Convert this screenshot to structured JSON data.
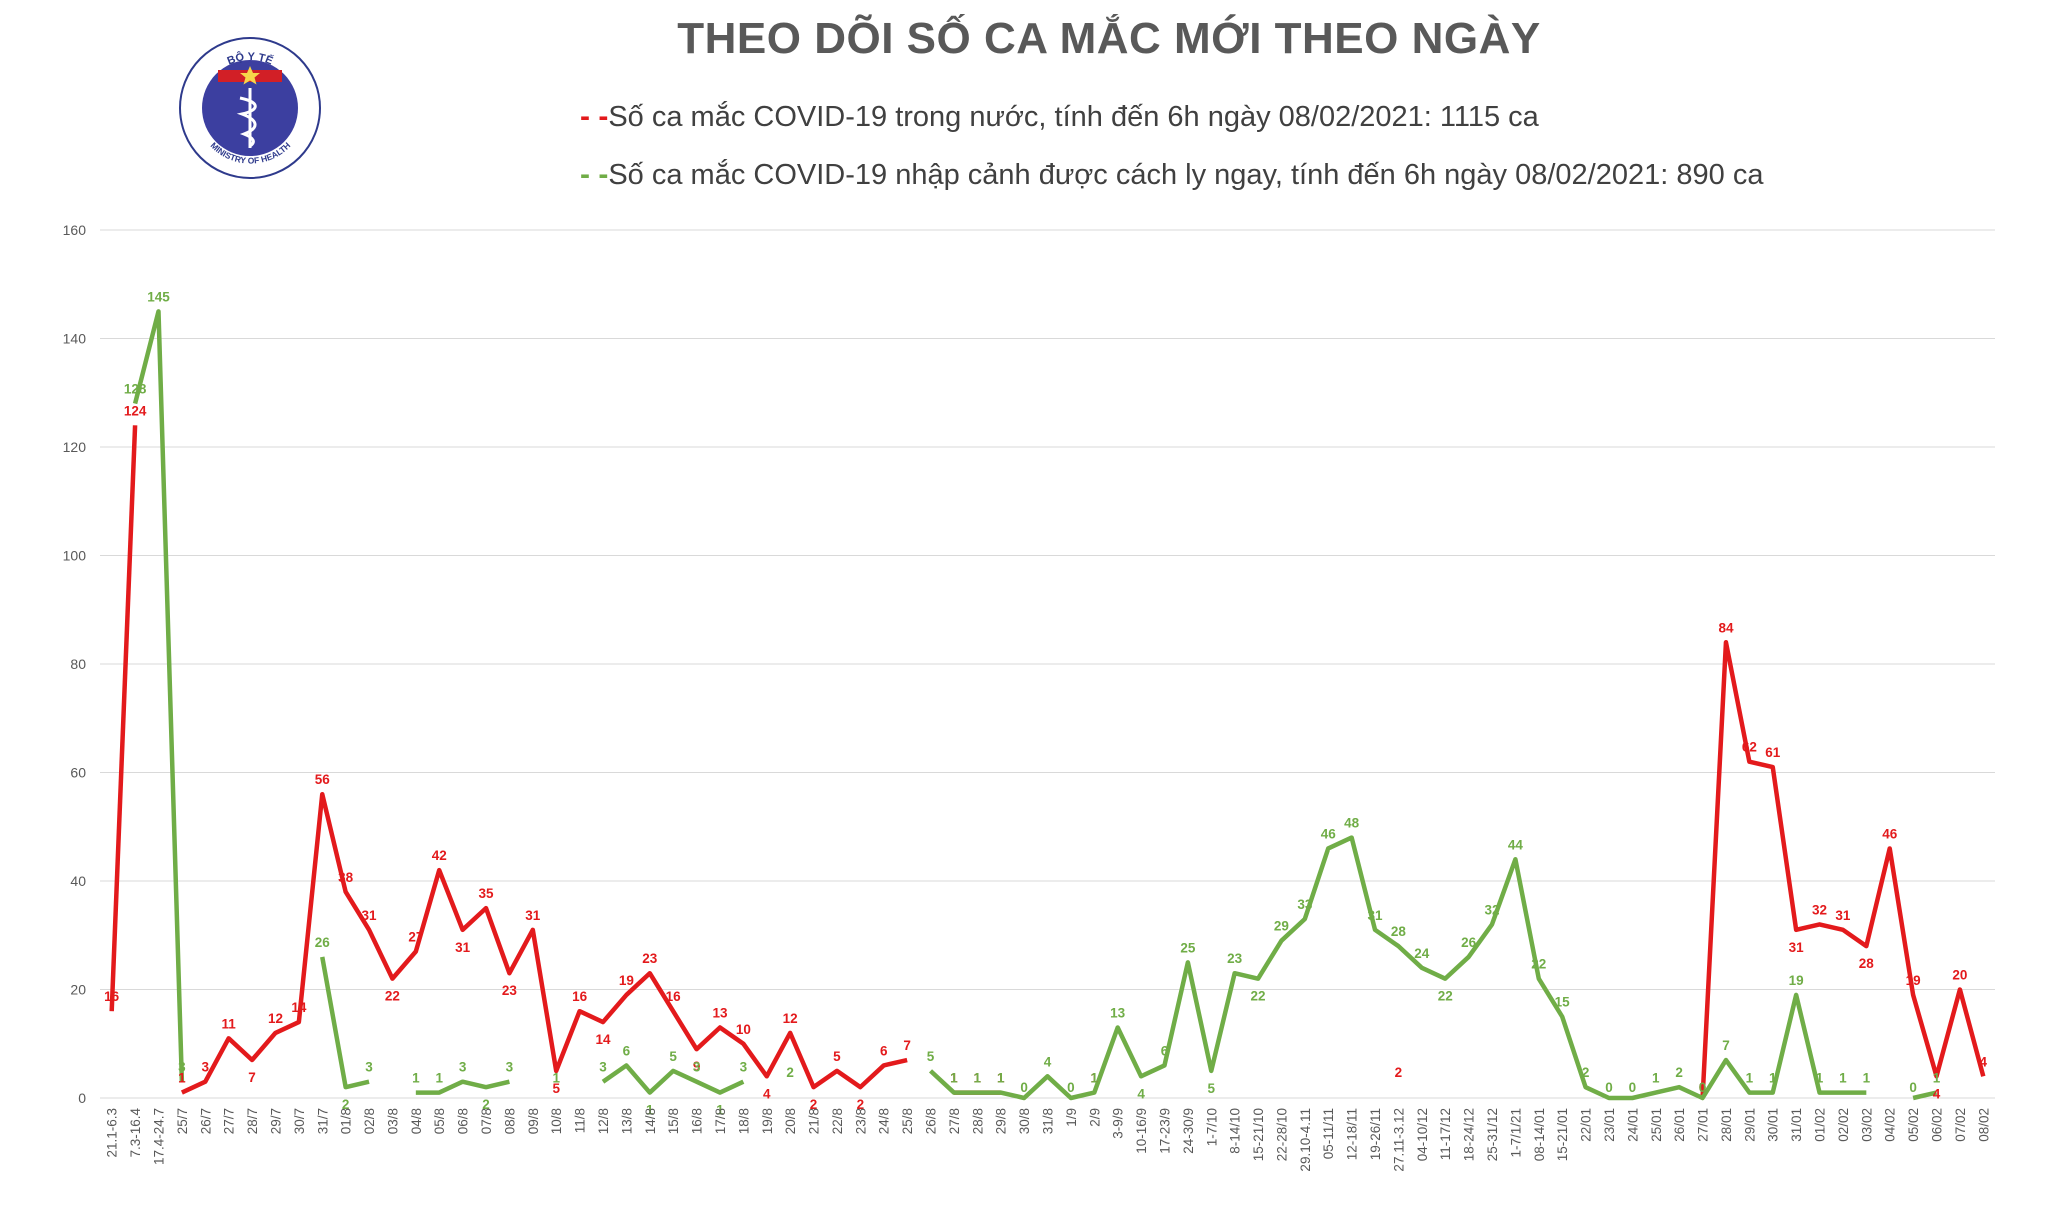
{
  "header": {
    "title": "THEO DÕI SỐ CA MẮC MỚI THEO NGÀY",
    "logo_text_top": "BỘ Y TẾ",
    "logo_text_bottom": "MINISTRY OF HEALTH"
  },
  "legend": [
    {
      "mark": "- -",
      "text": "Số ca mắc COVID-19 trong nước, tính đến 6h ngày 08/02/2021: 1115 ca",
      "color": "#e31a1c"
    },
    {
      "mark": "- -",
      "text": "Số ca mắc COVID-19 nhập cảnh được cách ly ngay, tính đến 6h ngày 08/02/2021: 890 ca",
      "color": "#70ad47"
    }
  ],
  "chart_data": {
    "type": "line",
    "title": "THEO DÕI SỐ CA MẮC MỚI THEO NGÀY",
    "xlabel": "",
    "ylabel": "",
    "ylim": [
      0,
      160
    ],
    "yticks": [
      0,
      20,
      40,
      60,
      80,
      100,
      120,
      140,
      160
    ],
    "grid": true,
    "legend_position": "top",
    "categories": [
      "21.1-6.3",
      "7.3-16.4",
      "17.4-24.7",
      "25/7",
      "26/7",
      "27/7",
      "28/7",
      "29/7",
      "30/7",
      "31/7",
      "01/8",
      "02/8",
      "03/8",
      "04/8",
      "05/8",
      "06/8",
      "07/8",
      "08/8",
      "09/8",
      "10/8",
      "11/8",
      "12/8",
      "13/8",
      "14/8",
      "15/8",
      "16/8",
      "17/8",
      "18/8",
      "19/8",
      "20/8",
      "21/8",
      "22/8",
      "23/8",
      "24/8",
      "25/8",
      "26/8",
      "27/8",
      "28/8",
      "29/8",
      "30/8",
      "31/8",
      "1/9",
      "2/9",
      "3-9/9",
      "10-16/9",
      "17-23/9",
      "24-30/9",
      "1-7/10",
      "8-14/10",
      "15-21/10",
      "22-28/10",
      "29.10-4.11",
      "05-11/11",
      "12-18/11",
      "19-26/11",
      "27.11-3.12",
      "04-10/12",
      "11-17/12",
      "18-24/12",
      "25-31/12",
      "1-7/1/21",
      "08-14/01",
      "15-21/01",
      "22/01",
      "23/01",
      "24/01",
      "25/01",
      "26/01",
      "27/01",
      "28/01",
      "29/01",
      "30/01",
      "31/01",
      "01/02",
      "02/02",
      "03/02",
      "04/02",
      "05/02",
      "06/02",
      "07/02",
      "08/02"
    ],
    "series": [
      {
        "name": "Số ca mắc COVID-19 trong nước, tính đến 6h ngày 08/02/2021: 1115 ca",
        "color": "#e31a1c",
        "values": [
          16,
          124,
          null,
          1,
          3,
          11,
          7,
          12,
          14,
          56,
          38,
          31,
          22,
          27,
          42,
          31,
          35,
          23,
          31,
          5,
          16,
          14,
          19,
          23,
          16,
          9,
          13,
          10,
          4,
          12,
          2,
          5,
          2,
          6,
          7,
          null,
          1,
          1,
          1,
          null,
          null,
          null,
          1,
          null,
          null,
          null,
          null,
          null,
          null,
          null,
          null,
          null,
          null,
          null,
          null,
          2,
          null,
          null,
          null,
          null,
          null,
          null,
          null,
          null,
          null,
          null,
          null,
          null,
          0,
          84,
          62,
          61,
          31,
          32,
          31,
          28,
          46,
          19,
          4,
          20,
          4
        ]
      },
      {
        "name": "Số ca mắc COVID-19 nhập cảnh được cách ly ngay, tính đến 6h ngày 08/02/2021: 890 ca",
        "color": "#70ad47",
        "values": [
          null,
          128,
          145,
          3,
          null,
          null,
          null,
          null,
          null,
          26,
          2,
          3,
          null,
          1,
          1,
          3,
          2,
          3,
          null,
          1,
          null,
          3,
          6,
          1,
          5,
          3,
          1,
          3,
          null,
          2,
          null,
          null,
          null,
          null,
          null,
          5,
          1,
          1,
          1,
          0,
          4,
          0,
          1,
          13,
          4,
          6,
          25,
          5,
          23,
          22,
          29,
          33,
          46,
          48,
          31,
          28,
          24,
          22,
          26,
          32,
          44,
          22,
          15,
          2,
          0,
          0,
          1,
          2,
          0,
          7,
          1,
          1,
          19,
          1,
          1,
          1,
          null,
          0,
          1,
          null,
          null
        ]
      }
    ]
  }
}
